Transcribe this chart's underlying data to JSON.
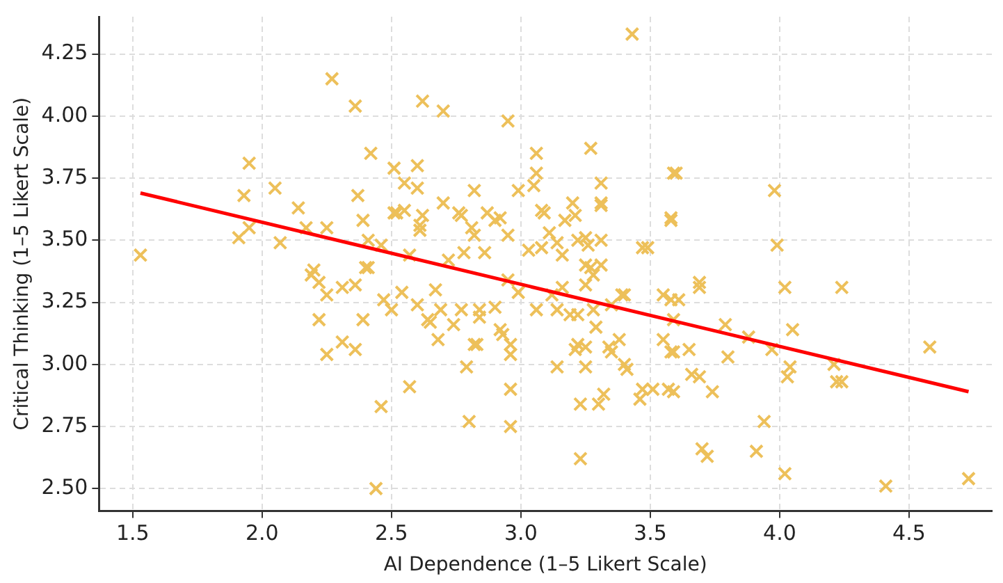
{
  "chart_data": {
    "type": "scatter",
    "xlabel": "AI Dependence (1–5 Likert Scale)",
    "ylabel": "Critical Thinking (1–5 Likert Scale)",
    "xlim": [
      1.37,
      4.82
    ],
    "ylim": [
      2.41,
      4.4
    ],
    "xticks": [
      {
        "value": 1.5,
        "label": "1.5"
      },
      {
        "value": 2,
        "label": "2.0"
      },
      {
        "value": 2.5,
        "label": "2.5"
      },
      {
        "value": 3,
        "label": "3.0"
      },
      {
        "value": 3.5,
        "label": "3.5"
      },
      {
        "value": 4,
        "label": "4.0"
      },
      {
        "value": 4.5,
        "label": "4.5"
      }
    ],
    "yticks": [
      {
        "value": 2.5,
        "label": "2.50"
      },
      {
        "value": 2.75,
        "label": "2.75"
      },
      {
        "value": 3,
        "label": "3.00"
      },
      {
        "value": 3.25,
        "label": "3.25"
      },
      {
        "value": 3.5,
        "label": "3.50"
      },
      {
        "value": 3.75,
        "label": "3.75"
      },
      {
        "value": 4,
        "label": "4.00"
      },
      {
        "value": 4.25,
        "label": "4.25"
      }
    ],
    "grid": true,
    "legend": false,
    "series": [
      {
        "marker": "cross",
        "color": "#edc05a",
        "x": [
          1.53,
          1.95,
          1.93,
          2.05,
          2.14,
          2.17,
          2.25,
          1.91,
          1.95,
          2.07,
          2.27,
          2.36,
          2.42,
          2.51,
          2.37,
          2.39,
          2.41,
          2.46,
          2.51,
          2.2,
          2.4,
          2.19,
          2.22,
          2.25,
          2.31,
          2.36,
          2.41,
          2.22,
          2.39,
          2.25,
          2.31,
          2.36,
          2.47,
          2.5,
          2.46,
          2.44,
          3.43,
          2.62,
          2.7,
          2.95,
          2.6,
          2.55,
          2.6,
          3.06,
          3.06,
          3.05,
          3.27,
          3.31,
          3.59,
          2.7,
          2.82,
          2.99,
          2.52,
          2.55,
          2.62,
          2.61,
          2.61,
          2.76,
          2.77,
          2.81,
          2.82,
          2.87,
          2.9,
          2.92,
          2.95,
          3.03,
          3.08,
          3.09,
          3.11,
          3.17,
          3.2,
          3.21,
          3.31,
          3.31,
          3.14,
          3.22,
          3.25,
          3.26,
          3.31,
          3.47,
          3.49,
          3.58,
          2.78,
          2.86,
          2.72,
          2.57,
          3.16,
          3.27,
          3.31,
          3.08,
          3.6,
          3.98,
          3.58,
          3.99,
          3.69,
          3.69,
          4.02,
          4.24,
          3.58,
          3.61,
          3.79,
          3.88,
          4.05,
          3.97,
          3.65,
          3.59,
          3.8,
          4.04,
          4.03,
          4.21,
          4.22,
          4.24,
          3.66,
          3.69,
          3.59,
          3.74,
          4.58,
          3.94,
          3.7,
          3.72,
          3.91,
          4.02,
          4.41,
          4.73,
          3.59,
          2.57,
          2.8,
          2.96,
          2.96,
          3.23,
          3.23,
          3.3,
          3.32,
          3.46,
          3.47,
          3.51,
          3.57,
          2.79,
          2.96,
          2.96,
          2.93,
          2.92,
          2.82,
          2.83,
          2.68,
          2.74,
          2.65,
          2.64,
          2.69,
          2.77,
          2.84,
          2.84,
          2.9,
          2.54,
          2.6,
          2.67,
          2.95,
          2.99,
          3.06,
          3.12,
          3.16,
          3.14,
          3.19,
          3.22,
          3.25,
          3.28,
          3.25,
          3.28,
          3.29,
          3.22,
          3.25,
          3.21,
          3.14,
          3.25,
          3.34,
          3.38,
          3.35,
          3.4,
          3.41,
          3.39,
          3.4,
          3.35,
          3.55,
          3.55,
          3.58
        ],
        "values": [
          3.44,
          3.81,
          3.68,
          3.71,
          3.63,
          3.55,
          3.55,
          3.51,
          3.55,
          3.49,
          4.15,
          4.04,
          3.85,
          3.79,
          3.68,
          3.58,
          3.5,
          3.48,
          3.61,
          3.38,
          3.39,
          3.36,
          3.33,
          3.28,
          3.31,
          3.32,
          3.39,
          3.18,
          3.18,
          3.04,
          3.09,
          3.06,
          3.26,
          3.22,
          2.83,
          2.5,
          4.33,
          4.06,
          4.02,
          3.98,
          3.8,
          3.73,
          3.71,
          3.85,
          3.77,
          3.72,
          3.87,
          3.73,
          3.77,
          3.65,
          3.7,
          3.7,
          3.61,
          3.62,
          3.6,
          3.56,
          3.54,
          3.61,
          3.6,
          3.55,
          3.52,
          3.61,
          3.58,
          3.59,
          3.52,
          3.46,
          3.62,
          3.61,
          3.53,
          3.58,
          3.65,
          3.6,
          3.65,
          3.64,
          3.49,
          3.5,
          3.51,
          3.48,
          3.5,
          3.47,
          3.47,
          3.59,
          3.45,
          3.45,
          3.42,
          3.44,
          3.44,
          3.39,
          3.4,
          3.47,
          3.77,
          3.7,
          3.58,
          3.48,
          3.33,
          3.31,
          3.31,
          3.31,
          3.26,
          3.26,
          3.16,
          3.11,
          3.14,
          3.06,
          3.06,
          3.05,
          3.03,
          2.99,
          2.95,
          3.0,
          2.93,
          2.93,
          2.96,
          2.95,
          2.89,
          2.89,
          3.07,
          2.77,
          2.66,
          2.63,
          2.65,
          2.56,
          2.51,
          2.54,
          3.18,
          2.91,
          2.77,
          2.75,
          2.9,
          2.62,
          2.84,
          2.84,
          2.88,
          2.86,
          2.9,
          2.9,
          2.9,
          2.99,
          3.04,
          3.08,
          3.12,
          3.14,
          3.08,
          3.08,
          3.1,
          3.16,
          3.17,
          3.18,
          3.22,
          3.22,
          3.22,
          3.19,
          3.23,
          3.29,
          3.24,
          3.3,
          3.34,
          3.29,
          3.22,
          3.28,
          3.31,
          3.22,
          3.2,
          3.2,
          3.4,
          3.36,
          3.32,
          3.22,
          3.15,
          3.08,
          3.07,
          3.06,
          2.99,
          2.99,
          3.07,
          3.1,
          3.05,
          3.0,
          2.98,
          3.28,
          3.28,
          3.24,
          3.28,
          3.1,
          3.05
        ]
      },
      {
        "type": "line",
        "marker": "none",
        "color": "#ff0000",
        "x": [
          1.53,
          4.73
        ],
        "values": [
          3.69,
          2.89
        ]
      }
    ]
  }
}
